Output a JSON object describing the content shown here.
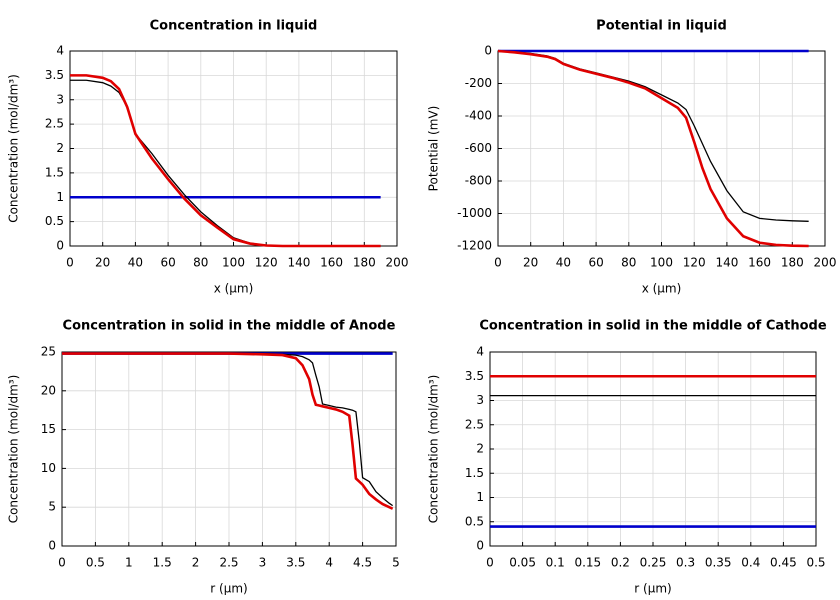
{
  "chart_data": [
    {
      "type": "line",
      "title": "Concentration in liquid",
      "xlabel": "x (µm)",
      "ylabel": "Concentration (mol/dm³)",
      "x": [
        0,
        10,
        20,
        25,
        30,
        35,
        40,
        50,
        60,
        70,
        80,
        90,
        100,
        110,
        120,
        130,
        140,
        150,
        160,
        170,
        180,
        190
      ],
      "series": [
        {
          "color": "#0000cc",
          "values": [
            1,
            1,
            1,
            1,
            1,
            1,
            1,
            1,
            1,
            1,
            1,
            1,
            1,
            1,
            1,
            1,
            1,
            1,
            1,
            1,
            1,
            1
          ]
        },
        {
          "color": "#000000",
          "values": [
            3.4,
            3.4,
            3.35,
            3.28,
            3.15,
            2.85,
            2.3,
            1.9,
            1.45,
            1.05,
            0.7,
            0.42,
            0.17,
            0.06,
            0.01,
            0,
            0,
            0,
            0,
            0,
            0,
            0
          ]
        },
        {
          "color": "#e00000",
          "values": [
            3.5,
            3.5,
            3.45,
            3.38,
            3.22,
            2.85,
            2.3,
            1.8,
            1.37,
            0.97,
            0.63,
            0.38,
            0.14,
            0.05,
            0.01,
            0,
            0,
            0,
            0,
            0,
            0,
            0
          ]
        }
      ],
      "xlim": [
        0,
        200
      ],
      "xticks": [
        0,
        20,
        40,
        60,
        80,
        100,
        120,
        140,
        160,
        180,
        200
      ],
      "ylim": [
        0,
        4
      ],
      "yticks": [
        0,
        0.5,
        1,
        1.5,
        2,
        2.5,
        3,
        3.5,
        4
      ],
      "grid": true
    },
    {
      "type": "line",
      "title": "Potential in liquid",
      "xlabel": "x (µm)",
      "ylabel": "Potential (mV)",
      "x": [
        0,
        10,
        20,
        30,
        35,
        40,
        50,
        60,
        70,
        80,
        90,
        100,
        110,
        115,
        120,
        125,
        130,
        140,
        150,
        160,
        170,
        180,
        190
      ],
      "series": [
        {
          "color": "#0000cc",
          "values": [
            0,
            0,
            0,
            0,
            0,
            0,
            0,
            0,
            0,
            0,
            0,
            0,
            0,
            0,
            0,
            0,
            0,
            0,
            0,
            0,
            0,
            0,
            0
          ]
        },
        {
          "color": "#000000",
          "values": [
            0,
            -5,
            -15,
            -30,
            -45,
            -75,
            -110,
            -135,
            -160,
            -185,
            -220,
            -270,
            -320,
            -360,
            -460,
            -570,
            -680,
            -860,
            -990,
            -1030,
            -1040,
            -1045,
            -1048
          ]
        },
        {
          "color": "#e00000",
          "values": [
            0,
            -8,
            -20,
            -35,
            -50,
            -80,
            -115,
            -140,
            -165,
            -195,
            -230,
            -290,
            -350,
            -410,
            -560,
            -720,
            -850,
            -1030,
            -1140,
            -1180,
            -1193,
            -1198,
            -1200
          ]
        }
      ],
      "xlim": [
        0,
        200
      ],
      "xticks": [
        0,
        20,
        40,
        60,
        80,
        100,
        120,
        140,
        160,
        180,
        200
      ],
      "ylim": [
        -1200,
        0
      ],
      "yticks": [
        -1200,
        -1000,
        -800,
        -600,
        -400,
        -200,
        0
      ],
      "grid": true
    },
    {
      "type": "line",
      "title": "Concentration in solid in the middle of Anode",
      "xlabel": "r (µm)",
      "ylabel": "Concentration (mol/dm³)",
      "x": [
        0,
        0.5,
        1,
        1.5,
        2,
        2.5,
        3,
        3.3,
        3.5,
        3.6,
        3.7,
        3.75,
        3.8,
        3.85,
        3.9,
        4.0,
        4.1,
        4.2,
        4.3,
        4.35,
        4.4,
        4.45,
        4.5,
        4.6,
        4.7,
        4.8,
        4.9,
        4.95
      ],
      "series": [
        {
          "color": "#0000cc",
          "values": [
            24.8,
            24.8,
            24.8,
            24.8,
            24.8,
            24.8,
            24.8,
            24.8,
            24.8,
            24.8,
            24.8,
            24.8,
            24.8,
            24.8,
            24.8,
            24.8,
            24.8,
            24.8,
            24.8,
            24.8,
            24.8,
            24.8,
            24.8,
            24.8,
            24.8,
            24.8,
            24.8,
            24.8
          ]
        },
        {
          "color": "#000000",
          "values": [
            24.8,
            24.8,
            24.8,
            24.8,
            24.8,
            24.8,
            24.8,
            24.7,
            24.6,
            24.4,
            24.0,
            23.6,
            22.0,
            20.5,
            18.3,
            18.1,
            17.9,
            17.8,
            17.6,
            17.5,
            17.3,
            13.5,
            8.8,
            8.3,
            7.0,
            6.2,
            5.5,
            5.2
          ]
        },
        {
          "color": "#e00000",
          "values": [
            24.8,
            24.8,
            24.8,
            24.8,
            24.8,
            24.8,
            24.7,
            24.6,
            24.2,
            23.3,
            21.5,
            19.5,
            18.2,
            18.1,
            18.0,
            17.8,
            17.6,
            17.3,
            16.8,
            13.0,
            8.7,
            8.3,
            7.9,
            6.7,
            6.0,
            5.4,
            5.0,
            4.8
          ]
        }
      ],
      "xlim": [
        0,
        5
      ],
      "xticks": [
        0,
        0.5,
        1,
        1.5,
        2,
        2.5,
        3,
        3.5,
        4,
        4.5,
        5
      ],
      "ylim": [
        0,
        25
      ],
      "yticks": [
        0,
        5,
        10,
        15,
        20,
        25
      ],
      "grid": true
    },
    {
      "type": "line",
      "title": "Concentration in solid in the middle of Cathode",
      "xlabel": "r (µm)",
      "ylabel": "Concentration (mol/dm³)",
      "x": [
        0,
        0.25,
        0.5
      ],
      "series": [
        {
          "color": "#0000cc",
          "values": [
            0.4,
            0.4,
            0.4
          ]
        },
        {
          "color": "#000000",
          "values": [
            3.1,
            3.1,
            3.1
          ]
        },
        {
          "color": "#e00000",
          "values": [
            3.5,
            3.5,
            3.5
          ]
        }
      ],
      "xlim": [
        0,
        0.5
      ],
      "xticks": [
        0,
        0.05,
        0.1,
        0.15,
        0.2,
        0.25,
        0.3,
        0.35,
        0.4,
        0.45,
        0.5
      ],
      "ylim": [
        0,
        4
      ],
      "yticks": [
        0,
        0.5,
        1,
        1.5,
        2,
        2.5,
        3,
        3.5,
        4
      ],
      "grid": true
    }
  ]
}
